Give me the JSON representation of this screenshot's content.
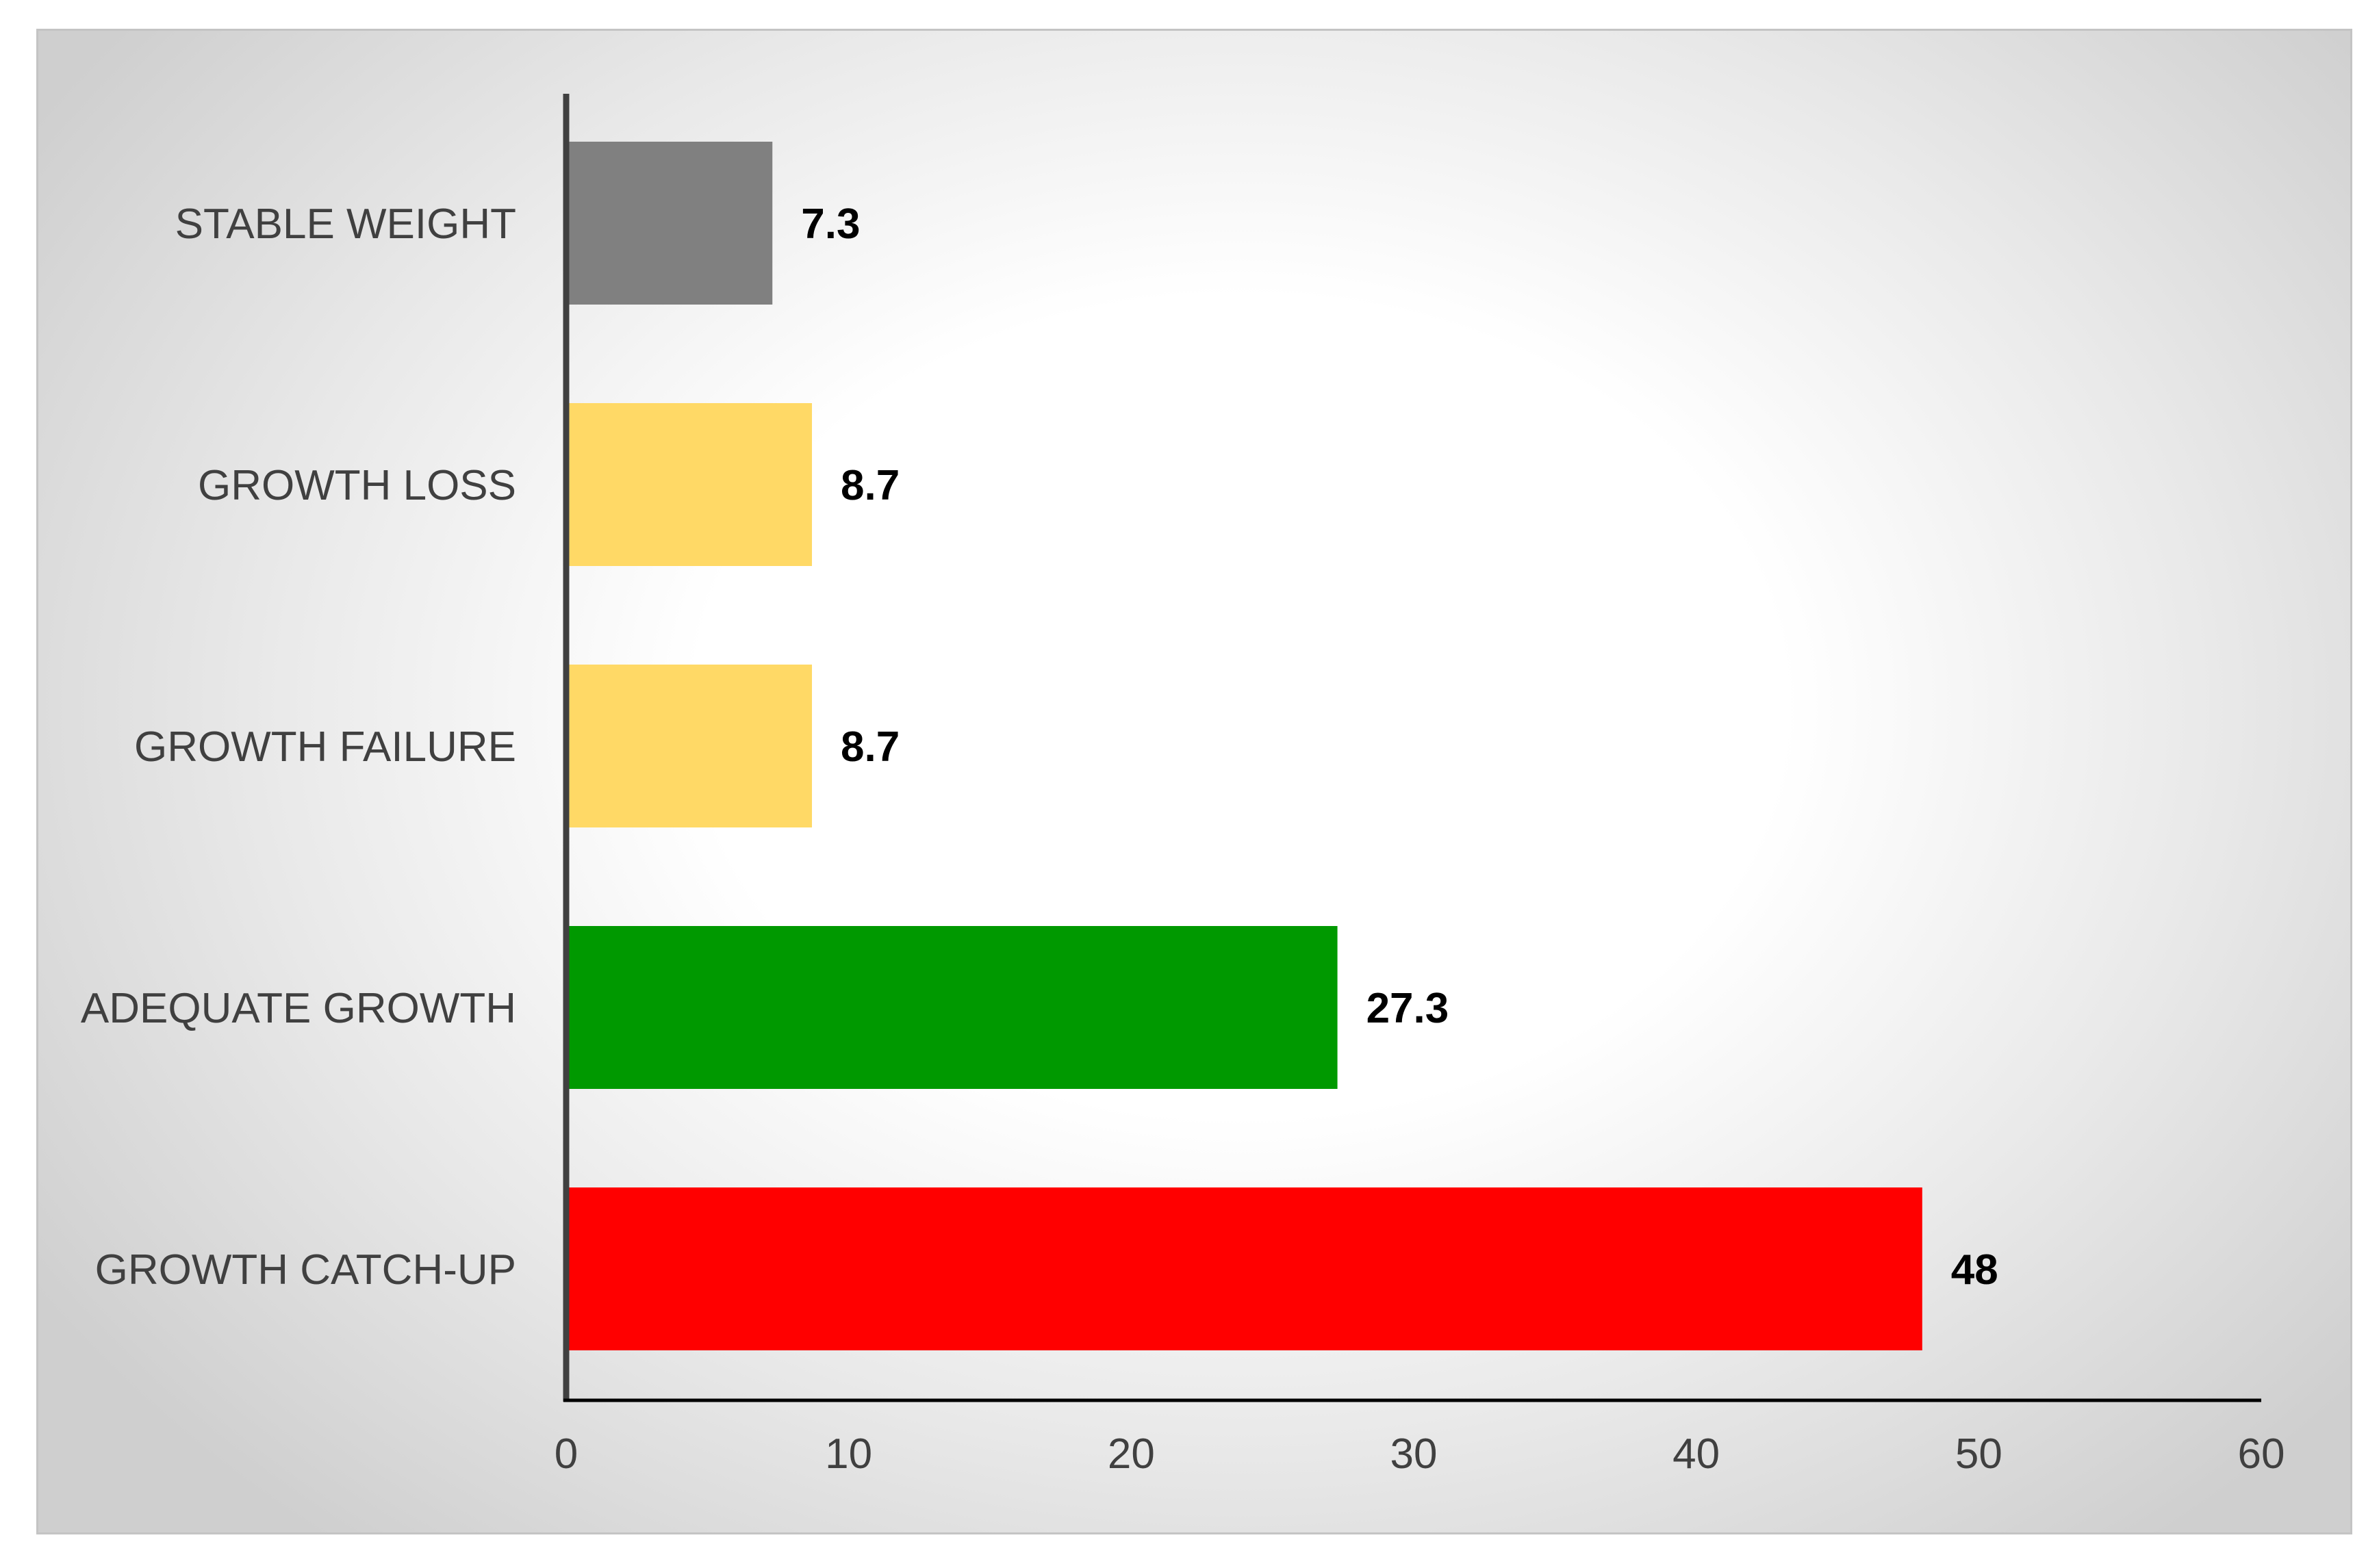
{
  "chart_data": {
    "type": "bar",
    "orientation": "horizontal",
    "categories": [
      "STABLE WEIGHT",
      "GROWTH LOSS",
      "GROWTH FAILURE",
      "ADEQUATE GROWTH",
      "GROWTH CATCH-UP"
    ],
    "values": [
      7.3,
      8.7,
      8.7,
      27.3,
      48
    ],
    "value_labels": [
      "7.3",
      "8.7",
      "8.7",
      "27.3",
      "48"
    ],
    "colors": [
      "#808080",
      "#ffd966",
      "#ffd966",
      "#009900",
      "#ff0000"
    ],
    "title": "",
    "xlabel": "",
    "ylabel": "",
    "xlim": [
      0,
      60
    ],
    "xticks": [
      0,
      10,
      20,
      30,
      40,
      50,
      60
    ],
    "xtick_labels": [
      "0",
      "10",
      "20",
      "30",
      "40",
      "50",
      "60"
    ],
    "grid": false,
    "legend": "none"
  }
}
